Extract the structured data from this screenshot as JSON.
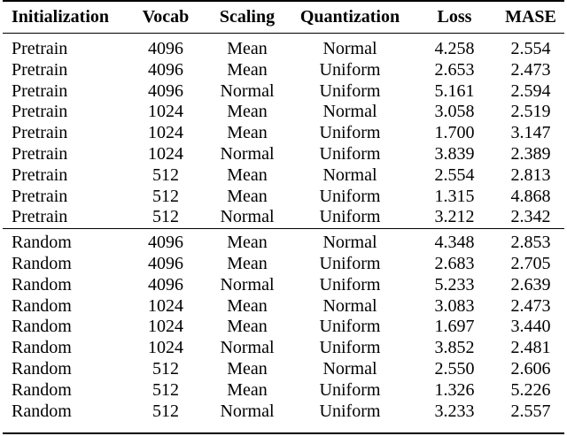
{
  "table": {
    "headers": [
      "Initialization",
      "Vocab",
      "Scaling",
      "Quantization",
      "Loss",
      "MASE"
    ],
    "groups": [
      {
        "rows": [
          [
            "Pretrain",
            "4096",
            "Mean",
            "Normal",
            "4.258",
            "2.554"
          ],
          [
            "Pretrain",
            "4096",
            "Mean",
            "Uniform",
            "2.653",
            "2.473"
          ],
          [
            "Pretrain",
            "4096",
            "Normal",
            "Uniform",
            "5.161",
            "2.594"
          ],
          [
            "Pretrain",
            "1024",
            "Mean",
            "Normal",
            "3.058",
            "2.519"
          ],
          [
            "Pretrain",
            "1024",
            "Mean",
            "Uniform",
            "1.700",
            "3.147"
          ],
          [
            "Pretrain",
            "1024",
            "Normal",
            "Uniform",
            "3.839",
            "2.389"
          ],
          [
            "Pretrain",
            "512",
            "Mean",
            "Normal",
            "2.554",
            "2.813"
          ],
          [
            "Pretrain",
            "512",
            "Mean",
            "Uniform",
            "1.315",
            "4.868"
          ],
          [
            "Pretrain",
            "512",
            "Normal",
            "Uniform",
            "3.212",
            "2.342"
          ]
        ]
      },
      {
        "rows": [
          [
            "Random",
            "4096",
            "Mean",
            "Normal",
            "4.348",
            "2.853"
          ],
          [
            "Random",
            "4096",
            "Mean",
            "Uniform",
            "2.683",
            "2.705"
          ],
          [
            "Random",
            "4096",
            "Normal",
            "Uniform",
            "5.233",
            "2.639"
          ],
          [
            "Random",
            "1024",
            "Mean",
            "Normal",
            "3.083",
            "2.473"
          ],
          [
            "Random",
            "1024",
            "Mean",
            "Uniform",
            "1.697",
            "3.440"
          ],
          [
            "Random",
            "1024",
            "Normal",
            "Uniform",
            "3.852",
            "2.481"
          ],
          [
            "Random",
            "512",
            "Mean",
            "Normal",
            "2.550",
            "2.606"
          ],
          [
            "Random",
            "512",
            "Mean",
            "Uniform",
            "1.326",
            "5.226"
          ],
          [
            "Random",
            "512",
            "Normal",
            "Uniform",
            "3.233",
            "2.557"
          ]
        ]
      }
    ]
  }
}
